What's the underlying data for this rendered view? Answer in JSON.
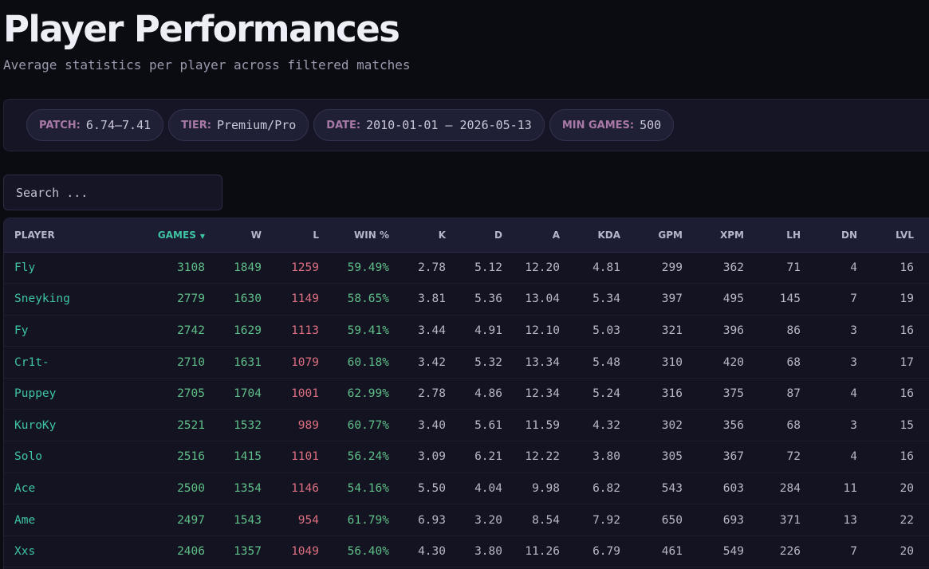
{
  "page": {
    "title": "Player Performances",
    "subtitle": "Average statistics per player across filtered matches"
  },
  "filters": [
    {
      "label": "PATCH:",
      "value": "6.74–7.41"
    },
    {
      "label": "TIER:",
      "value": "Premium/Pro"
    },
    {
      "label": "DATE:",
      "value": "2010-01-01 – 2026-05-13"
    },
    {
      "label": "MIN GAMES:",
      "value": "500"
    }
  ],
  "search": {
    "placeholder": "Search ...",
    "value": ""
  },
  "colors": {
    "accent": "#3fc4a4",
    "good": "#5fbf87",
    "bad": "#dd6f7f",
    "neutral": "#b8b8c6",
    "filter_label": "#a879a6"
  },
  "table": {
    "columns": [
      {
        "key": "player",
        "label": "PLAYER"
      },
      {
        "key": "games",
        "label": "GAMES",
        "sorted": true,
        "sort_icon": "▼"
      },
      {
        "key": "w",
        "label": "W"
      },
      {
        "key": "l",
        "label": "L"
      },
      {
        "key": "win_pct",
        "label": "WIN %"
      },
      {
        "key": "k",
        "label": "K"
      },
      {
        "key": "d",
        "label": "D"
      },
      {
        "key": "a",
        "label": "A"
      },
      {
        "key": "kda",
        "label": "KDA"
      },
      {
        "key": "gpm",
        "label": "GPM"
      },
      {
        "key": "xpm",
        "label": "XPM"
      },
      {
        "key": "lh",
        "label": "LH"
      },
      {
        "key": "dn",
        "label": "DN"
      },
      {
        "key": "lvl",
        "label": "LVL"
      }
    ],
    "rows": [
      {
        "player": "Fly",
        "games": "3108",
        "w": "1849",
        "l": "1259",
        "win_pct": "59.49%",
        "k": "2.78",
        "d": "5.12",
        "a": "12.20",
        "kda": "4.81",
        "gpm": "299",
        "xpm": "362",
        "lh": "71",
        "dn": "4",
        "lvl": "16",
        "tones": {
          "k": "bad",
          "d": "neutral",
          "a": "neutral",
          "kda": "bad",
          "gpm": "bad",
          "xpm": "bad",
          "lh": "bad",
          "dn": "bad",
          "lvl": "bad"
        }
      },
      {
        "player": "Sneyking",
        "games": "2779",
        "w": "1630",
        "l": "1149",
        "win_pct": "58.65%",
        "k": "3.81",
        "d": "5.36",
        "a": "13.04",
        "kda": "5.34",
        "gpm": "397",
        "xpm": "495",
        "lh": "145",
        "dn": "7",
        "lvl": "19",
        "tones": {
          "k": "bad",
          "d": "neutral",
          "a": "good",
          "kda": "bad",
          "gpm": "bad",
          "xpm": "bad",
          "lh": "bad",
          "dn": "bad",
          "lvl": "neutral"
        }
      },
      {
        "player": "Fy",
        "games": "2742",
        "w": "1629",
        "l": "1113",
        "win_pct": "59.41%",
        "k": "3.44",
        "d": "4.91",
        "a": "12.10",
        "kda": "5.03",
        "gpm": "321",
        "xpm": "396",
        "lh": "86",
        "dn": "3",
        "lvl": "16",
        "tones": {
          "k": "bad",
          "d": "neutral",
          "a": "neutral",
          "kda": "bad",
          "gpm": "bad",
          "xpm": "bad",
          "lh": "bad",
          "dn": "bad",
          "lvl": "bad"
        }
      },
      {
        "player": "Cr1t-",
        "games": "2710",
        "w": "1631",
        "l": "1079",
        "win_pct": "60.18%",
        "k": "3.42",
        "d": "5.32",
        "a": "13.34",
        "kda": "5.48",
        "gpm": "310",
        "xpm": "420",
        "lh": "68",
        "dn": "3",
        "lvl": "17",
        "tones": {
          "k": "bad",
          "d": "neutral",
          "a": "good",
          "kda": "bad",
          "gpm": "bad",
          "xpm": "bad",
          "lh": "bad",
          "dn": "bad",
          "lvl": "bad"
        }
      },
      {
        "player": "Puppey",
        "games": "2705",
        "w": "1704",
        "l": "1001",
        "win_pct": "62.99%",
        "k": "2.78",
        "d": "4.86",
        "a": "12.34",
        "kda": "5.24",
        "gpm": "316",
        "xpm": "375",
        "lh": "87",
        "dn": "4",
        "lvl": "16",
        "tones": {
          "k": "bad",
          "d": "neutral",
          "a": "neutral",
          "kda": "bad",
          "gpm": "bad",
          "xpm": "bad",
          "lh": "bad",
          "dn": "bad",
          "lvl": "bad"
        }
      },
      {
        "player": "KuroKy",
        "games": "2521",
        "w": "1532",
        "l": "989",
        "win_pct": "60.77%",
        "k": "3.40",
        "d": "5.61",
        "a": "11.59",
        "kda": "4.32",
        "gpm": "302",
        "xpm": "356",
        "lh": "68",
        "dn": "3",
        "lvl": "15",
        "tones": {
          "k": "bad",
          "d": "neutral",
          "a": "neutral",
          "kda": "bad",
          "gpm": "bad",
          "xpm": "bad",
          "lh": "bad",
          "dn": "bad",
          "lvl": "bad"
        }
      },
      {
        "player": "Solo",
        "games": "2516",
        "w": "1415",
        "l": "1101",
        "win_pct": "56.24%",
        "k": "3.09",
        "d": "6.21",
        "a": "12.22",
        "kda": "3.80",
        "gpm": "305",
        "xpm": "367",
        "lh": "72",
        "dn": "4",
        "lvl": "16",
        "tones": {
          "k": "bad",
          "d": "bad",
          "a": "neutral",
          "kda": "bad",
          "gpm": "bad",
          "xpm": "bad",
          "lh": "bad",
          "dn": "bad",
          "lvl": "bad"
        }
      },
      {
        "player": "Ace",
        "games": "2500",
        "w": "1354",
        "l": "1146",
        "win_pct": "54.16%",
        "k": "5.50",
        "d": "4.04",
        "a": "9.98",
        "kda": "6.82",
        "gpm": "543",
        "xpm": "603",
        "lh": "284",
        "dn": "11",
        "lvl": "20",
        "tones": {
          "k": "neutral",
          "d": "good",
          "a": "bad",
          "kda": "neutral",
          "gpm": "neutral",
          "xpm": "neutral",
          "lh": "neutral",
          "dn": "neutral",
          "lvl": "neutral"
        }
      },
      {
        "player": "Ame",
        "games": "2497",
        "w": "1543",
        "l": "954",
        "win_pct": "61.79%",
        "k": "6.93",
        "d": "3.20",
        "a": "8.54",
        "kda": "7.92",
        "gpm": "650",
        "xpm": "693",
        "lh": "371",
        "dn": "13",
        "lvl": "22",
        "tones": {
          "k": "good",
          "d": "good",
          "a": "bad",
          "kda": "neutral",
          "gpm": "good",
          "xpm": "neutral",
          "lh": "neutral",
          "dn": "neutral",
          "lvl": "neutral"
        }
      },
      {
        "player": "Xxs",
        "games": "2406",
        "w": "1357",
        "l": "1049",
        "win_pct": "56.40%",
        "k": "4.30",
        "d": "3.80",
        "a": "11.26",
        "kda": "6.79",
        "gpm": "461",
        "xpm": "549",
        "lh": "226",
        "dn": "7",
        "lvl": "20",
        "tones": {
          "k": "bad",
          "d": "good",
          "a": "neutral",
          "kda": "neutral",
          "gpm": "neutral",
          "xpm": "neutral",
          "lh": "neutral",
          "dn": "neutral",
          "lvl": "neutral"
        }
      }
    ]
  }
}
